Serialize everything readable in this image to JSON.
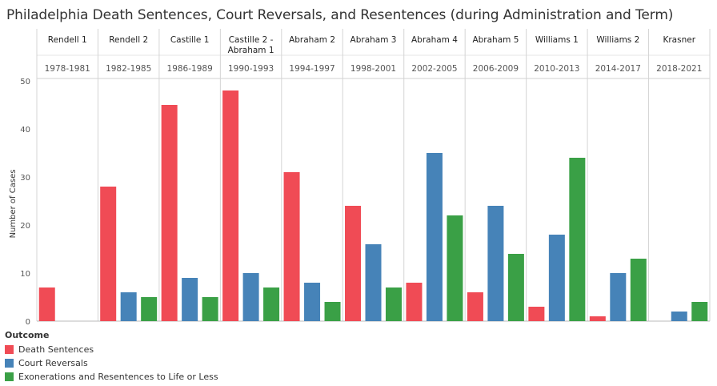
{
  "colors": {
    "death": "#f04b55",
    "reversal": "#4683b8",
    "exoneration": "#3aa046"
  },
  "chart_data": {
    "type": "bar",
    "title": "Philadelphia Death Sentences, Court Reversals, and Resentences (during Administration and Term)",
    "ylabel": "Number of Cases",
    "ylim": [
      0,
      50
    ],
    "yticks": [
      0,
      10,
      20,
      30,
      40,
      50
    ],
    "grid": false,
    "legend_title": "Outcome",
    "legend_position": "bottom-left",
    "categories": [
      {
        "admin": [
          "Rendell 1"
        ],
        "term": "1978-1981"
      },
      {
        "admin": [
          "Rendell 2"
        ],
        "term": "1982-1985"
      },
      {
        "admin": [
          "Castille 1"
        ],
        "term": "1986-1989"
      },
      {
        "admin": [
          "Castille 2 -",
          "Abraham 1"
        ],
        "term": "1990-1993"
      },
      {
        "admin": [
          "Abraham 2"
        ],
        "term": "1994-1997"
      },
      {
        "admin": [
          "Abraham 3"
        ],
        "term": "1998-2001"
      },
      {
        "admin": [
          "Abraham 4"
        ],
        "term": "2002-2005"
      },
      {
        "admin": [
          "Abraham 5"
        ],
        "term": "2006-2009"
      },
      {
        "admin": [
          "Williams 1"
        ],
        "term": "2010-2013"
      },
      {
        "admin": [
          "Williams 2"
        ],
        "term": "2014-2017"
      },
      {
        "admin": [
          "Krasner"
        ],
        "term": "2018-2021"
      }
    ],
    "series": [
      {
        "name": "Death Sentences",
        "key": "death",
        "values": [
          7,
          28,
          45,
          48,
          31,
          24,
          8,
          6,
          3,
          1,
          null
        ]
      },
      {
        "name": "Court Reversals",
        "key": "reversal",
        "values": [
          null,
          6,
          9,
          10,
          8,
          16,
          35,
          24,
          18,
          10,
          2
        ]
      },
      {
        "name": "Exonerations and Resentences to Life or Less",
        "key": "exoneration",
        "values": [
          null,
          5,
          5,
          7,
          4,
          7,
          22,
          14,
          34,
          13,
          4
        ]
      }
    ]
  }
}
